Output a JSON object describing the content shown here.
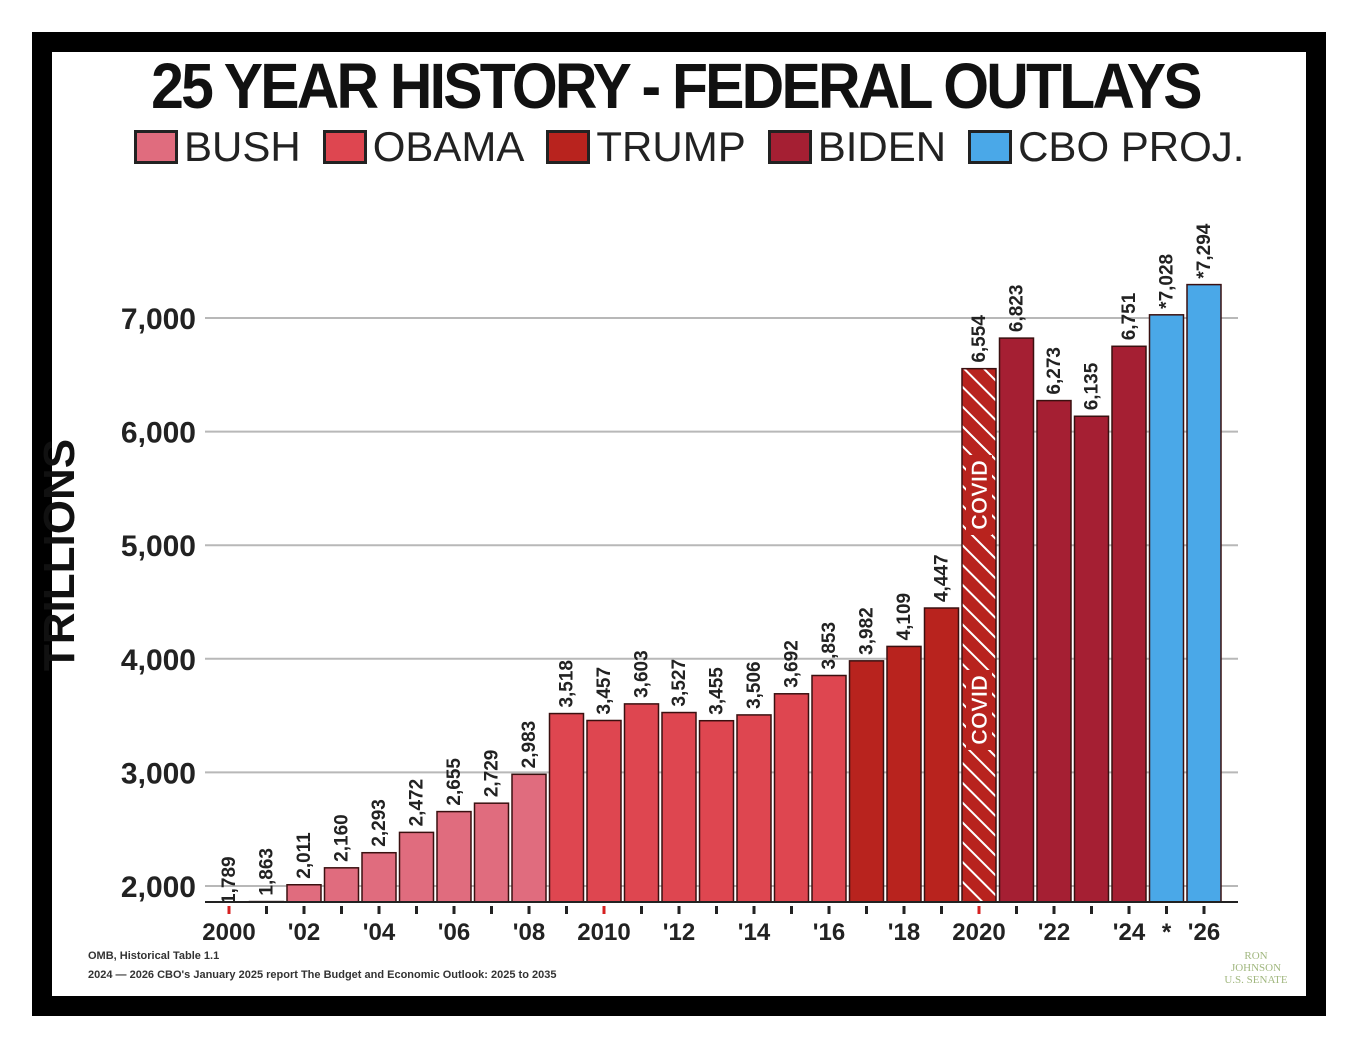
{
  "chart_data": {
    "type": "bar",
    "title": "25 YEAR HISTORY - FEDERAL OUTLAYS",
    "ylabel": "TRILLIONS",
    "ylim": [
      1850,
      7300
    ],
    "yticks": [
      2000,
      3000,
      4000,
      5000,
      6000,
      7000
    ],
    "ytick_labels": [
      "2,000",
      "3,000",
      "4,000",
      "5,000",
      "6,000",
      "7,000"
    ],
    "grid": true,
    "legend": [
      {
        "name": "BUSH",
        "color": "#e06c7e"
      },
      {
        "name": "OBAMA",
        "color": "#de4650"
      },
      {
        "name": "TRUMP",
        "color": "#b8231e"
      },
      {
        "name": "BIDEN",
        "color": "#a51f33"
      },
      {
        "name": "CBO PROJ.",
        "color": "#4aa8e8"
      }
    ],
    "x_tick_labels": [
      "2000",
      "",
      "'02",
      "",
      "'04",
      "",
      "'06",
      "",
      "'08",
      "",
      "2010",
      "",
      "'12",
      "",
      "'14",
      "",
      "'16",
      "",
      "'18",
      "",
      "2020",
      "",
      "'22",
      "",
      "'24",
      "*",
      "'26"
    ],
    "bars": [
      {
        "year": 2000,
        "value": 1789,
        "label": "1,789",
        "group": "BUSH"
      },
      {
        "year": 2001,
        "value": 1863,
        "label": "1,863",
        "group": "BUSH"
      },
      {
        "year": 2002,
        "value": 2011,
        "label": "2,011",
        "group": "BUSH"
      },
      {
        "year": 2003,
        "value": 2160,
        "label": "2,160",
        "group": "BUSH"
      },
      {
        "year": 2004,
        "value": 2293,
        "label": "2,293",
        "group": "BUSH"
      },
      {
        "year": 2005,
        "value": 2472,
        "label": "2,472",
        "group": "BUSH"
      },
      {
        "year": 2006,
        "value": 2655,
        "label": "2,655",
        "group": "BUSH"
      },
      {
        "year": 2007,
        "value": 2729,
        "label": "2,729",
        "group": "BUSH"
      },
      {
        "year": 2008,
        "value": 2983,
        "label": "2,983",
        "group": "BUSH"
      },
      {
        "year": 2009,
        "value": 3518,
        "label": "3,518",
        "group": "OBAMA"
      },
      {
        "year": 2010,
        "value": 3457,
        "label": "3,457",
        "group": "OBAMA"
      },
      {
        "year": 2011,
        "value": 3603,
        "label": "3,603",
        "group": "OBAMA"
      },
      {
        "year": 2012,
        "value": 3527,
        "label": "3,527",
        "group": "OBAMA"
      },
      {
        "year": 2013,
        "value": 3455,
        "label": "3,455",
        "group": "OBAMA"
      },
      {
        "year": 2014,
        "value": 3506,
        "label": "3,506",
        "group": "OBAMA"
      },
      {
        "year": 2015,
        "value": 3692,
        "label": "3,692",
        "group": "OBAMA"
      },
      {
        "year": 2016,
        "value": 3853,
        "label": "3,853",
        "group": "OBAMA"
      },
      {
        "year": 2017,
        "value": 3982,
        "label": "3,982",
        "group": "TRUMP"
      },
      {
        "year": 2018,
        "value": 4109,
        "label": "4,109",
        "group": "TRUMP"
      },
      {
        "year": 2019,
        "value": 4447,
        "label": "4,447",
        "group": "TRUMP"
      },
      {
        "year": 2020,
        "value": 6554,
        "label": "6,554",
        "group": "TRUMP",
        "annotation": "COVID"
      },
      {
        "year": 2021,
        "value": 6823,
        "label": "6,823",
        "group": "BIDEN"
      },
      {
        "year": 2022,
        "value": 6273,
        "label": "6,273",
        "group": "BIDEN"
      },
      {
        "year": 2023,
        "value": 6135,
        "label": "6,135",
        "group": "BIDEN"
      },
      {
        "year": 2024,
        "value": 6751,
        "label": "6,751",
        "group": "BIDEN"
      },
      {
        "year": 2025,
        "value": 7028,
        "label": "*7,028",
        "group": "CBO PROJ."
      },
      {
        "year": 2026,
        "value": 7294,
        "label": "*7,294",
        "group": "CBO PROJ."
      }
    ],
    "annotation_label": "COVID"
  },
  "source_lines": [
    "OMB, Historical Table 1.1",
    "2024 — 2026 CBO's January 2025 report The Budget and Economic Outlook: 2025 to 2035"
  ],
  "logo_text": [
    "RON",
    "JOHNSON",
    "U.S. SENATE"
  ]
}
